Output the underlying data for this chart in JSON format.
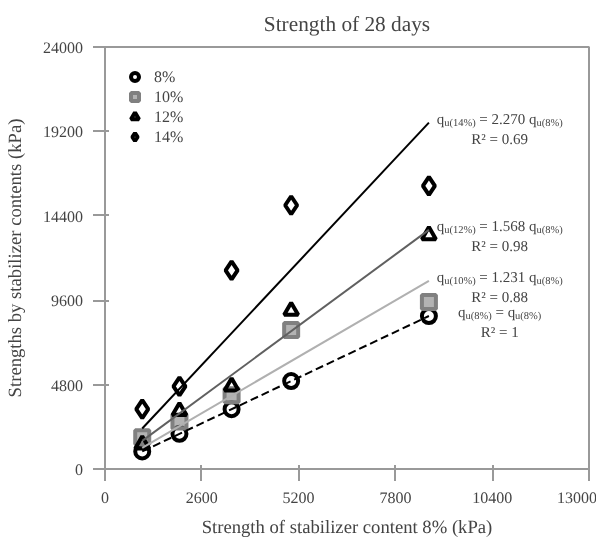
{
  "chart_data": {
    "type": "scatter",
    "title": "Strength of 28 days",
    "xlabel": "Strength of stabilizer content 8% (kPa)",
    "ylabel": "Strengths by stabilizer contents (kPa)",
    "xlim": [
      0,
      13000
    ],
    "ylim": [
      0,
      24000
    ],
    "xticks": [
      0,
      2600,
      5200,
      7800,
      10400,
      13000
    ],
    "yticks": [
      0,
      4800,
      9600,
      14400,
      19200,
      24000
    ],
    "grid": false,
    "legend": "top left",
    "series": [
      {
        "name": "8%",
        "marker": "circle",
        "color": "#000000",
        "x": [
          1000,
          2000,
          3400,
          5000,
          8700
        ],
        "values": [
          1000,
          2000,
          3400,
          5000,
          8700
        ]
      },
      {
        "name": "10%",
        "marker": "square",
        "color": "#808080",
        "x": [
          1000,
          2000,
          3400,
          5000,
          8700
        ],
        "values": [
          1800,
          2700,
          4200,
          7900,
          9500
        ]
      },
      {
        "name": "12%",
        "marker": "triangle",
        "color": "#000000",
        "x": [
          1000,
          2000,
          3400,
          5000,
          8700
        ],
        "values": [
          1400,
          3300,
          4700,
          9000,
          13300
        ]
      },
      {
        "name": "14%",
        "marker": "diamond",
        "color": "#000000",
        "x": [
          1000,
          2000,
          3400,
          5000,
          8700
        ],
        "values": [
          3400,
          4700,
          11300,
          15000,
          16100
        ]
      },
      {
        "type": "line",
        "line_style": "dashed",
        "color": "#000000",
        "x": [
          1000,
          8700
        ],
        "values": [
          1000,
          8700
        ]
      },
      {
        "type": "line",
        "line_style": "solid",
        "color": "#b0b0b0",
        "x": [
          1000,
          8700
        ],
        "values": [
          1200,
          10700
        ]
      },
      {
        "type": "line",
        "line_style": "solid",
        "color": "#606060",
        "x": [
          1000,
          8700
        ],
        "values": [
          1600,
          13600
        ]
      },
      {
        "type": "line",
        "line_style": "solid",
        "color": "#000000",
        "x": [
          1000,
          8700
        ],
        "values": [
          2300,
          19700
        ]
      }
    ],
    "annotations": [
      "q$_{u(14%)}$ = 2.270 q$_{u(8%)}$",
      "R² = 0.69",
      "q$_{u(12%)}$ = 1.568 q$_{u(8%)}$",
      "R² = 0.98",
      "q$_{u(10%)}$ = 1.231 q$_{u(8%)}$",
      "R² = 0.88",
      "q$_{u(8%)}$ = q$_{u(8%)}$",
      "R² = 1"
    ]
  }
}
